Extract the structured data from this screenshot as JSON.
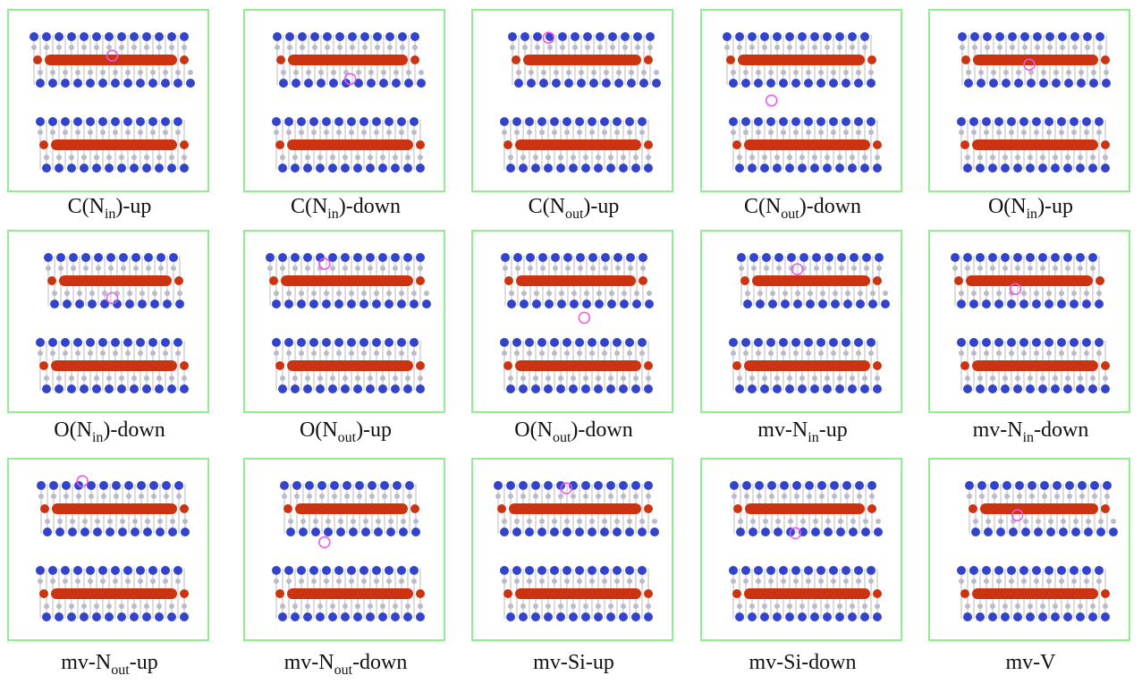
{
  "panels": [
    {
      "label": {
        "text": "C(N",
        "sub": "in",
        "tail": ")-up"
      }
    },
    {
      "label": {
        "text": "C(N",
        "sub": "in",
        "tail": ")-down"
      }
    },
    {
      "label": {
        "text": "C(N",
        "sub": "out",
        "tail": ")-up"
      }
    },
    {
      "label": {
        "text": "C(N",
        "sub": "out",
        "tail": ")-down"
      }
    },
    {
      "label": {
        "text": "O(N",
        "sub": "in",
        "tail": ")-up"
      }
    },
    {
      "label": {
        "text": "O(N",
        "sub": "in",
        "tail": ")-down"
      }
    },
    {
      "label": {
        "text": "O(N",
        "sub": "out",
        "tail": ")-up"
      }
    },
    {
      "label": {
        "text": "O(N",
        "sub": "out",
        "tail": ")-down"
      }
    },
    {
      "label": {
        "text": "mv-N",
        "sub": "in",
        "tail": "-up"
      }
    },
    {
      "label": {
        "text": "mv-N",
        "sub": "in",
        "tail": "-down"
      }
    },
    {
      "label": {
        "text": "mv-N",
        "sub": "out",
        "tail": "-up"
      }
    },
    {
      "label": {
        "text": "mv-N",
        "sub": "out",
        "tail": "-down"
      }
    },
    {
      "label": {
        "text": "mv-Si-up"
      }
    },
    {
      "label": {
        "text": "mv-Si-down"
      }
    },
    {
      "label": {
        "text": "mv-V"
      }
    }
  ]
}
